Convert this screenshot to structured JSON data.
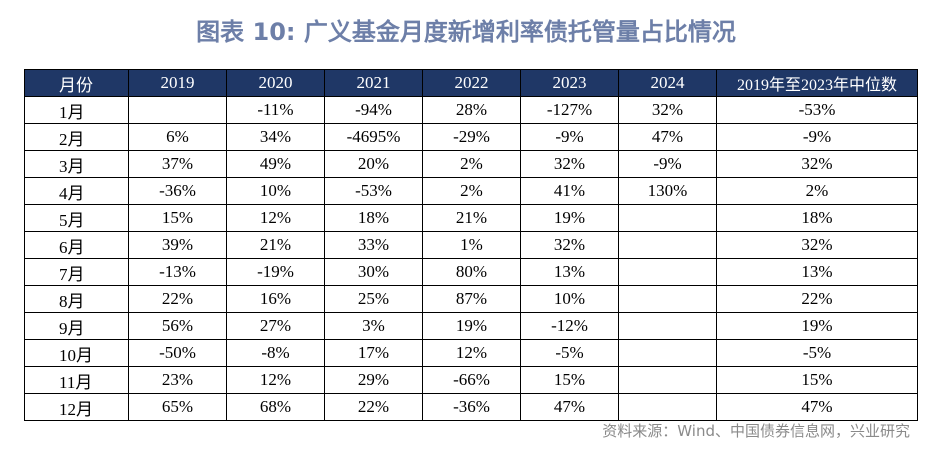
{
  "title": "图表 10: 广义基金月度新增利率债托管量占比情况",
  "table": {
    "headers": [
      "月份",
      "2019",
      "2020",
      "2021",
      "2022",
      "2023",
      "2024",
      "2019年至2023年中位数"
    ],
    "rows": [
      [
        "1月",
        "",
        "-11%",
        "-94%",
        "28%",
        "-127%",
        "32%",
        "-53%"
      ],
      [
        "2月",
        "6%",
        "34%",
        "-4695%",
        "-29%",
        "-9%",
        "47%",
        "-9%"
      ],
      [
        "3月",
        "37%",
        "49%",
        "20%",
        "2%",
        "32%",
        "-9%",
        "32%"
      ],
      [
        "4月",
        "-36%",
        "10%",
        "-53%",
        "2%",
        "41%",
        "130%",
        "2%"
      ],
      [
        "5月",
        "15%",
        "12%",
        "18%",
        "21%",
        "19%",
        "",
        "18%"
      ],
      [
        "6月",
        "39%",
        "21%",
        "33%",
        "1%",
        "32%",
        "",
        "32%"
      ],
      [
        "7月",
        "-13%",
        "-19%",
        "30%",
        "80%",
        "13%",
        "",
        "13%"
      ],
      [
        "8月",
        "22%",
        "16%",
        "25%",
        "87%",
        "10%",
        "",
        "22%"
      ],
      [
        "9月",
        "56%",
        "27%",
        "3%",
        "19%",
        "-12%",
        "",
        "19%"
      ],
      [
        "10月",
        "-50%",
        "-8%",
        "17%",
        "12%",
        "-5%",
        "",
        "-5%"
      ],
      [
        "11月",
        "23%",
        "12%",
        "29%",
        "-66%",
        "15%",
        "",
        "15%"
      ],
      [
        "12月",
        "65%",
        "68%",
        "22%",
        "-36%",
        "47%",
        "",
        "47%"
      ]
    ]
  },
  "source": "资料来源：Wind、中国债券信息网，兴业研究",
  "colors": {
    "header_bg": "#1f3766",
    "title": "#6d7fa8",
    "source": "#8a8a8a"
  }
}
